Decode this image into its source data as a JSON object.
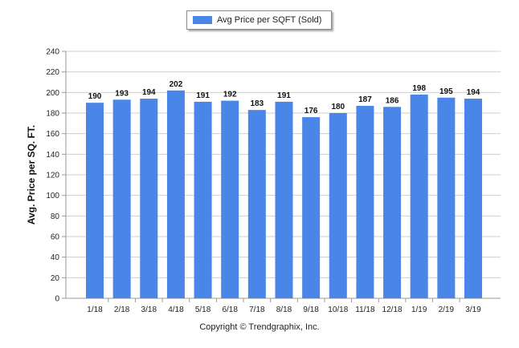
{
  "chart_data": {
    "type": "bar",
    "series": [
      {
        "name": "Avg Price per SQFT (Sold)",
        "color": "#4a86e8",
        "values": [
          190,
          193,
          194,
          202,
          191,
          192,
          183,
          191,
          176,
          180,
          187,
          186,
          198,
          195,
          194
        ]
      }
    ],
    "categories": [
      "1/18",
      "2/18",
      "3/18",
      "4/18",
      "5/18",
      "6/18",
      "7/18",
      "8/18",
      "9/18",
      "10/18",
      "11/18",
      "12/18",
      "1/19",
      "2/19",
      "3/19"
    ],
    "ylabel": "Avg. Price per SQ. FT.",
    "xlabel": "",
    "ylim": [
      0,
      240
    ],
    "yticks": [
      0,
      20,
      40,
      60,
      80,
      100,
      120,
      140,
      160,
      180,
      200,
      220,
      240
    ],
    "grid": true,
    "legend": "top-center",
    "data_labels": true
  },
  "footer": {
    "copyright": "Copyright © Trendgraphix, Inc."
  }
}
